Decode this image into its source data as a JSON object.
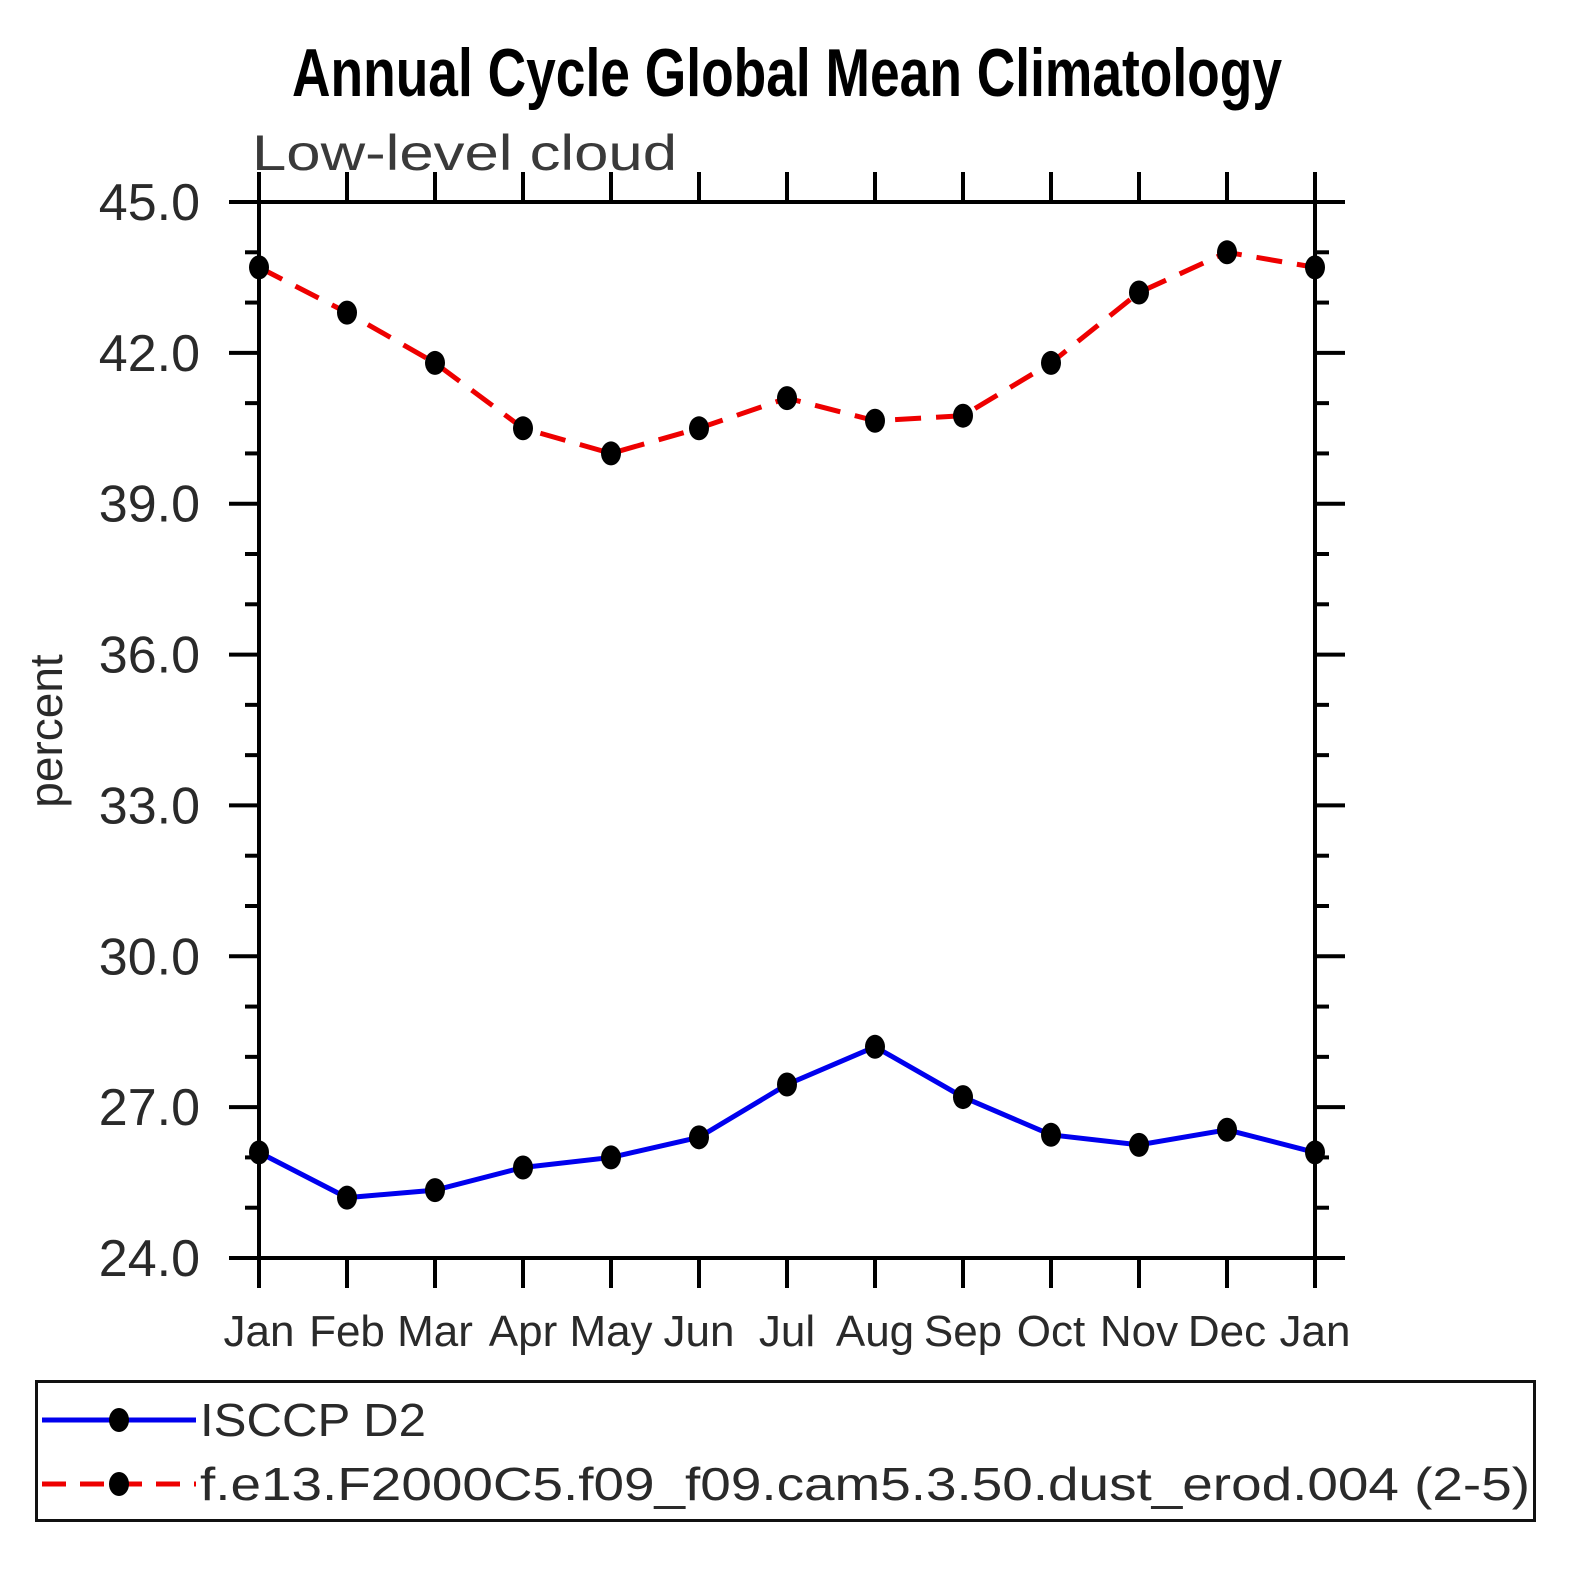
{
  "header": {
    "title": "Annual Cycle Global Mean Climatology",
    "subtitle": "Low-level cloud"
  },
  "chart_data": {
    "type": "line",
    "title": "Annual Cycle Global Mean Climatology",
    "subtitle": "Low-level cloud",
    "xlabel": "",
    "ylabel": "percent",
    "categories": [
      "Jan",
      "Feb",
      "Mar",
      "Apr",
      "May",
      "Jun",
      "Jul",
      "Aug",
      "Sep",
      "Oct",
      "Nov",
      "Dec",
      "Jan"
    ],
    "ylim": [
      24.0,
      45.0
    ],
    "ytick_major": [
      24.0,
      27.0,
      30.0,
      33.0,
      36.0,
      39.0,
      42.0,
      45.0
    ],
    "ytick_major_labels": [
      "24.0",
      "27.0",
      "30.0",
      "33.0",
      "36.0",
      "39.0",
      "42.0",
      "45.0"
    ],
    "ytick_minor_step": 1.0,
    "grid": false,
    "legend_position": "bottom",
    "axis_color": "#000000",
    "marker_color": "#000000",
    "series": [
      {
        "name": "ISCCP D2",
        "color": "#0000ee",
        "style": "solid",
        "marker": "circle",
        "values": [
          26.1,
          25.2,
          25.35,
          25.8,
          26.0,
          26.4,
          27.45,
          28.2,
          27.2,
          26.45,
          26.25,
          26.55,
          26.1
        ]
      },
      {
        "name": "f.e13.F2000C5.f09_f09.cam5.3.50.dust_erod.004 (2-5)",
        "color": "#ee0000",
        "style": "dashed",
        "marker": "circle",
        "values": [
          43.7,
          42.8,
          41.8,
          40.5,
          40.0,
          40.5,
          41.1,
          40.65,
          40.75,
          41.8,
          43.2,
          44.0,
          43.7
        ]
      }
    ]
  }
}
